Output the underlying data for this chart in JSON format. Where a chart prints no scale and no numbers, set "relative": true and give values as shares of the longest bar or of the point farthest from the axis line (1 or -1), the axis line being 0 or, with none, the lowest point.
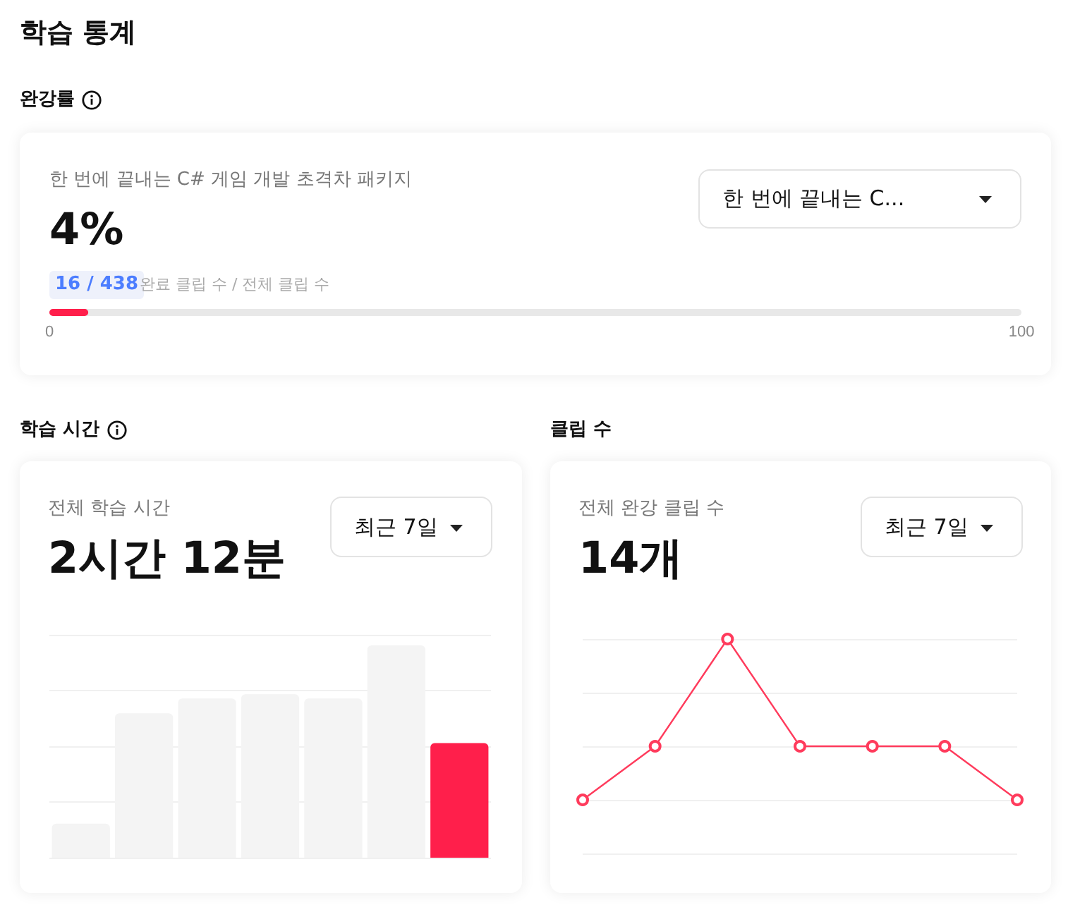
{
  "chart_data": [
    {
      "type": "bar",
      "title": "학습 통계",
      "subtitle": "완강률",
      "annotations": [
        "한 번에 끝내는 C# 게임 개발 초격차 패키지",
        "4%",
        "16 / 438",
        "완료 클립 수 / 전체 클립 수",
        "한 번에 끝내는 C..."
      ],
      "orientation": "horizontal",
      "categories": [
        null
      ],
      "values": [
        4
      ],
      "color": "#ff1f4b",
      "xlim": [
        0,
        100
      ],
      "xticks": [
        0,
        100
      ],
      "tick_labels": "x"
    },
    {
      "type": "bar",
      "title": "학습 시간",
      "annotations": [
        "전체 학습 시간",
        "2시간 12분",
        "최근 7일"
      ],
      "categories": [
        null,
        null,
        null,
        null,
        null,
        null,
        null
      ],
      "values": [
        0.16,
        0.68,
        0.75,
        0.77,
        0.75,
        1,
        0.54
      ],
      "colors": [
        "#f4f4f4",
        "#f4f4f4",
        "#f4f4f4",
        "#f4f4f4",
        "#f4f4f4",
        "#f4f4f4",
        "#ff1f4b"
      ],
      "relative": true,
      "grid": "y",
      "tick_labels": false
    },
    {
      "type": "line",
      "title": "클립 수",
      "annotations": [
        "전체 완강 클립 수",
        "14개",
        "최근 7일"
      ],
      "categories": [
        null,
        null,
        null,
        null,
        null,
        null,
        null
      ],
      "values": [
        0.25,
        0.5,
        1,
        0.5,
        0.5,
        0.5,
        0.25
      ],
      "color": "#ff3b5c",
      "relative": true,
      "grid": "y",
      "marker": "circle",
      "line_style": "solid",
      "tick_labels": false
    }
  ]
}
